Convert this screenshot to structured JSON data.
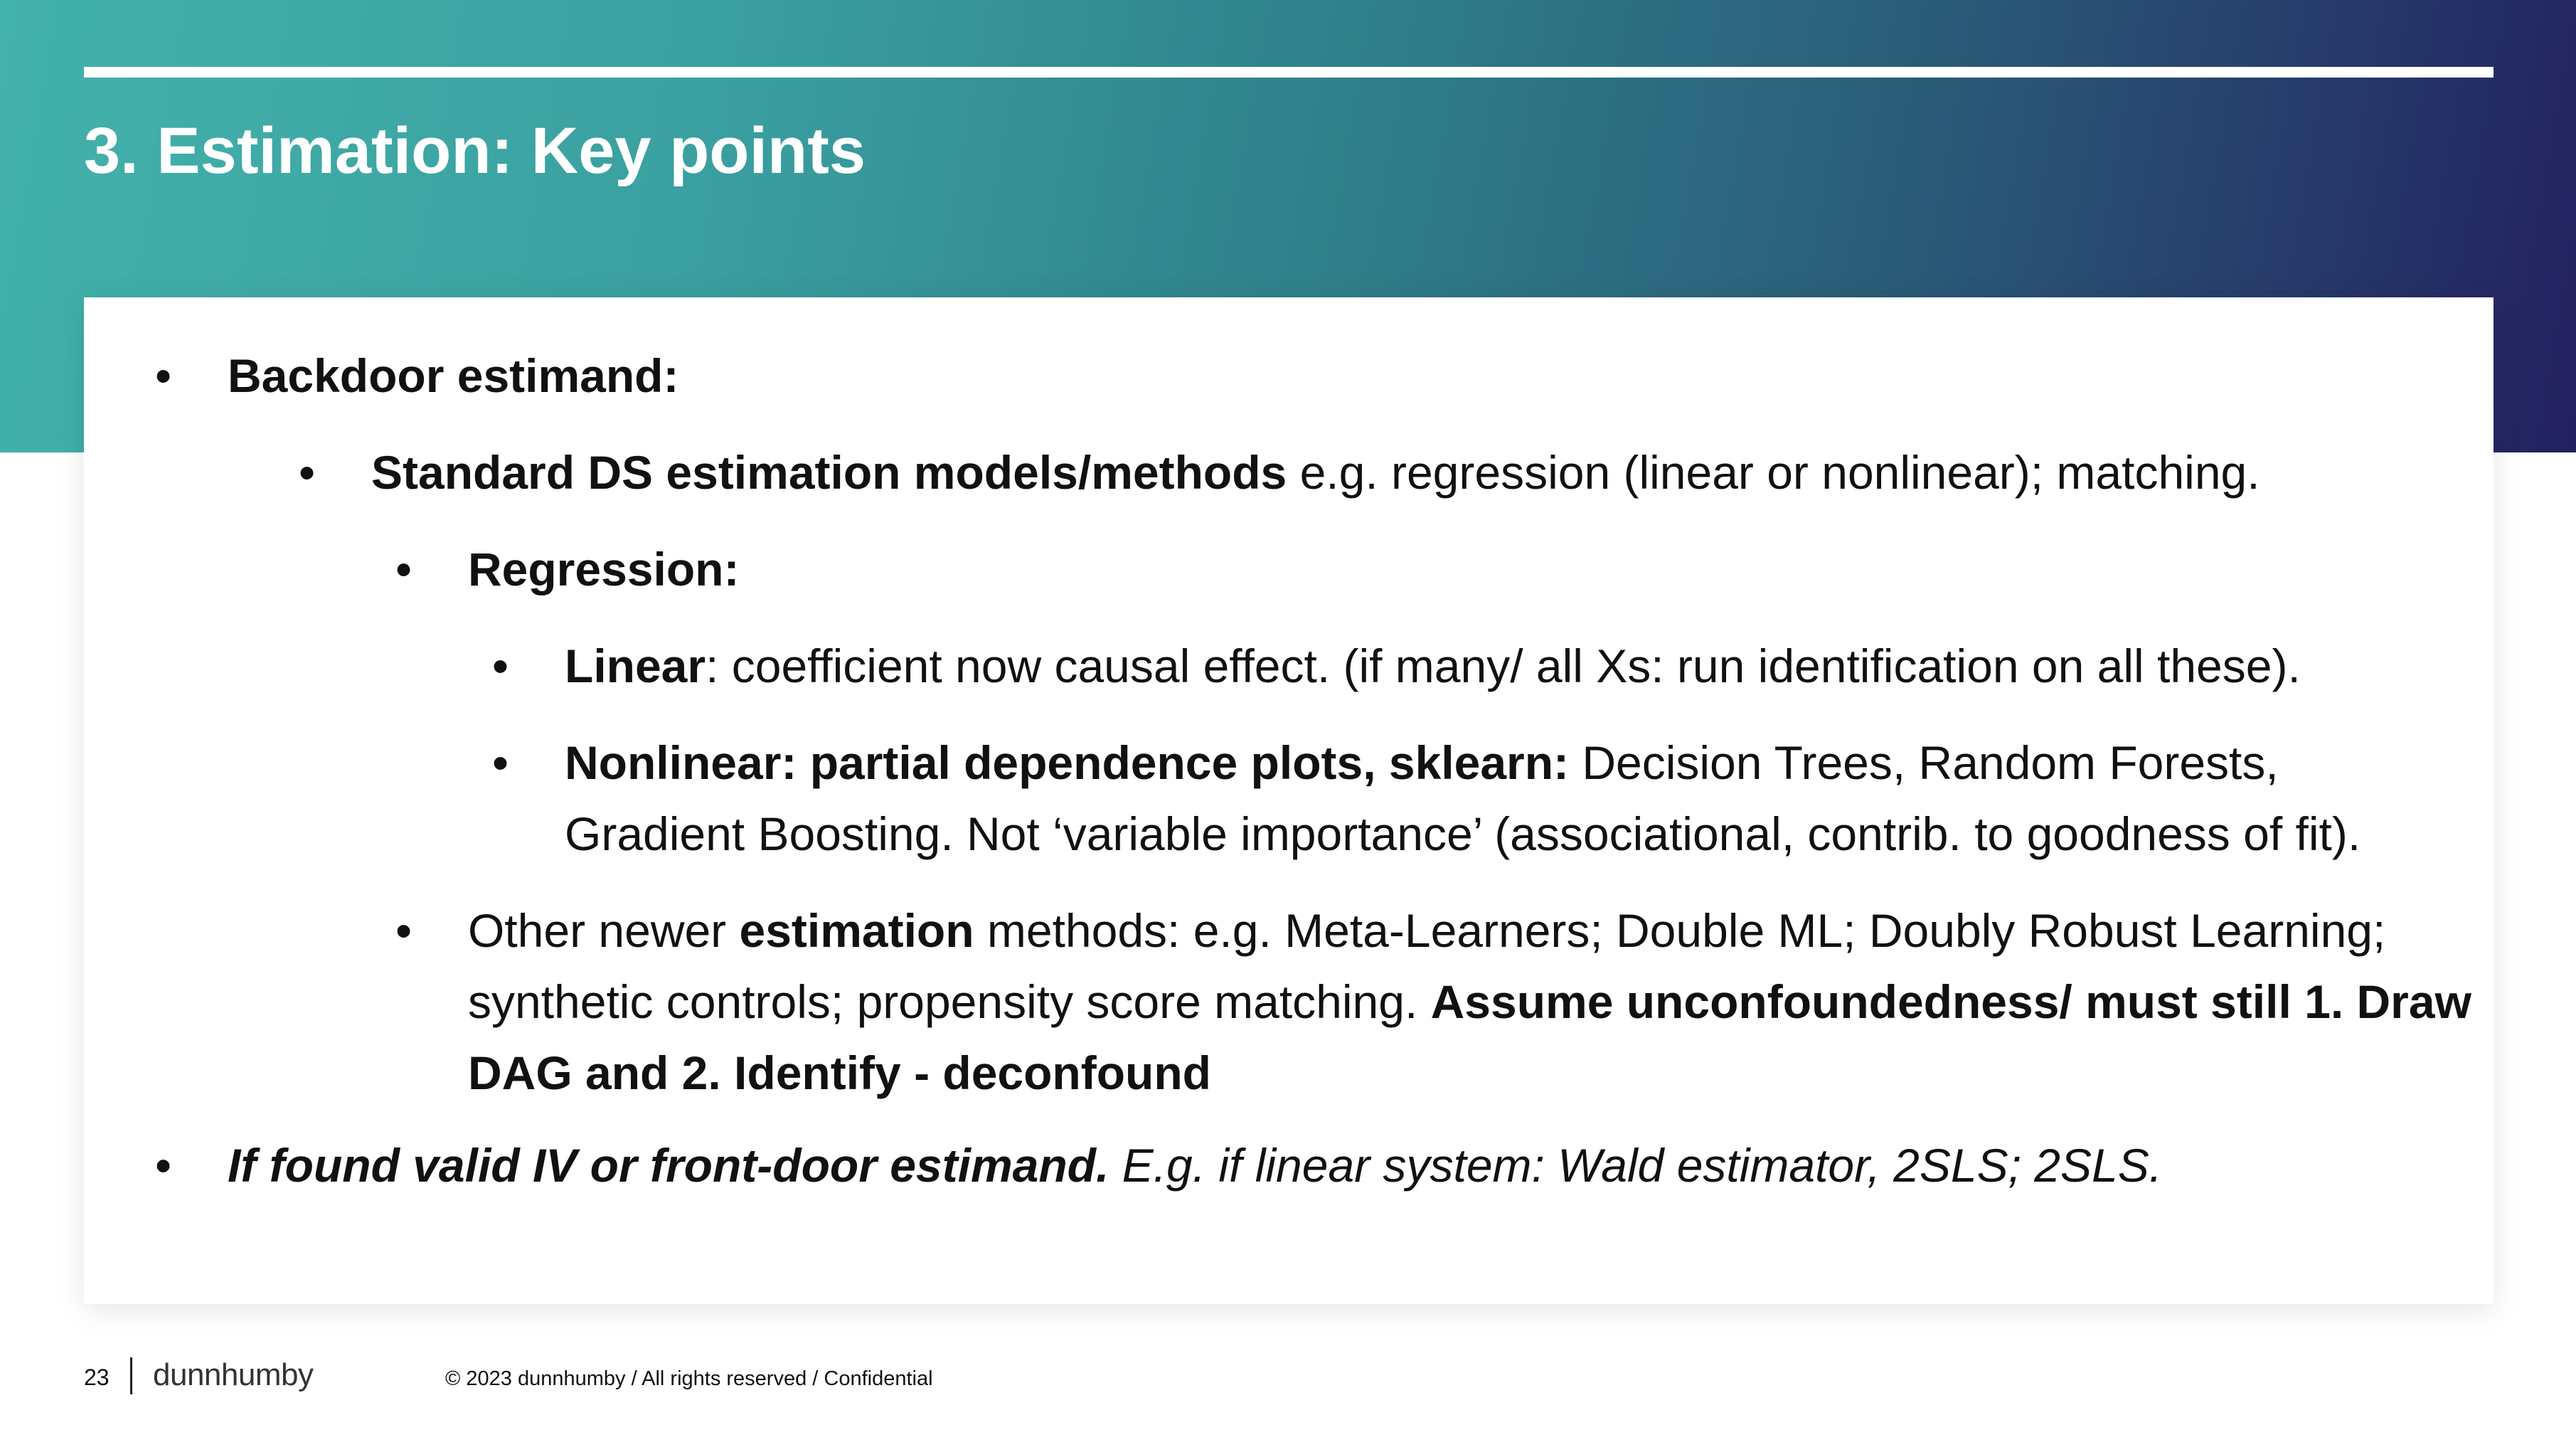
{
  "slide": {
    "title": "3. Estimation: Key points",
    "bullet_char": "•"
  },
  "bullets": {
    "b1": {
      "bold": "Backdoor estimand:"
    },
    "b2": {
      "bold": "Standard DS estimation models/methods",
      "rest": " e.g. regression (linear or nonlinear); matching."
    },
    "b3": {
      "bold": "Regression:"
    },
    "b4": {
      "bold": "Linear",
      "rest": ": coefficient now causal effect. (if many/ all Xs: run identification on all these)."
    },
    "b5": {
      "bold": "Nonlinear: partial dependence plots, sklearn:",
      "rest": " Decision Trees, Random Forests, Gradient Boosting. Not ‘variable importance’ (associational, contrib. to goodness of fit)."
    },
    "b6": {
      "pre": "Other newer ",
      "bold": "estimation",
      "mid": " methods: e.g. Meta-Learners; Double ML; Doubly Robust Learning; synthetic controls; propensity score matching. ",
      "bold2": "Assume unconfoundedness/ must still 1. Draw DAG and 2. Identify - deconfound"
    },
    "b7": {
      "bold": "If found valid IV or front-door estimand.",
      "rest": " E.g. if linear system: Wald estimator, 2SLS; 2SLS."
    }
  },
  "footer": {
    "page_number": "23",
    "logo_text": "dunnhumby",
    "copyright": "© 2023 dunnhumby / All rights reserved / Confidential"
  }
}
